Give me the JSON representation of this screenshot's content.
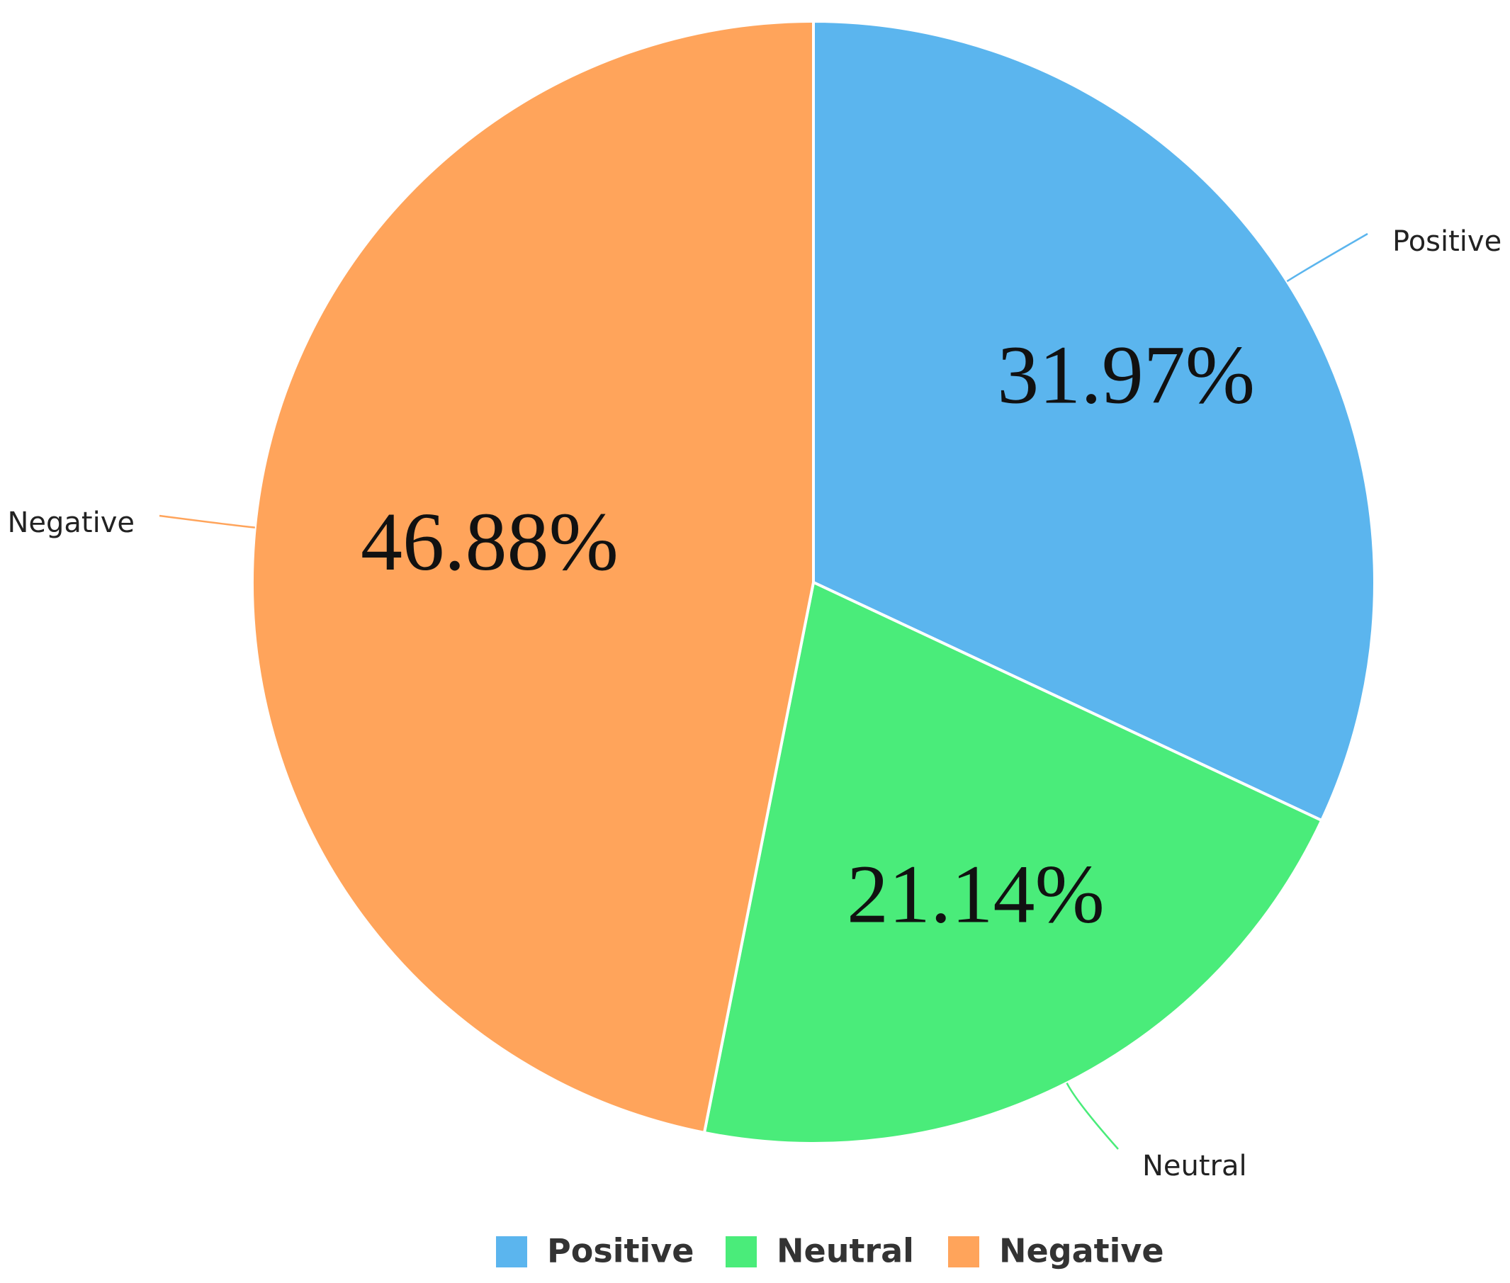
{
  "chart_data": {
    "type": "pie",
    "title": "",
    "slices": [
      {
        "name": "Positive",
        "value": 31.97,
        "label": "31.97%",
        "color": "#5BB5EE"
      },
      {
        "name": "Neutral",
        "value": 21.14,
        "label": "21.14%",
        "color": "#4AEC7A"
      },
      {
        "name": "Negative",
        "value": 46.88,
        "label": "46.88%",
        "color": "#FFA45B"
      }
    ],
    "start_angle": "12 o'clock",
    "direction": "clockwise",
    "legend": {
      "placement": "bottom-center",
      "entries": [
        "Positive",
        "Neutral",
        "Negative"
      ]
    }
  }
}
